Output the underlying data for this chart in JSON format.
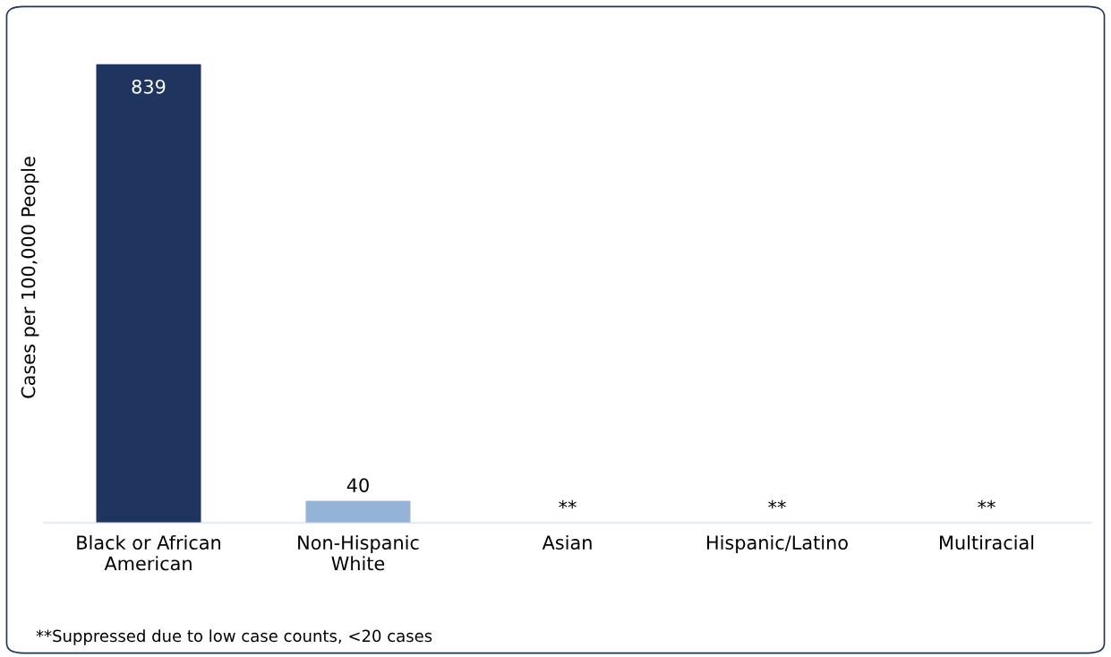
{
  "chart_data": {
    "type": "bar",
    "ylabel": "Cases per 100,000 People",
    "categories": [
      "Black or African\nAmerican",
      "Non-Hispanic\nWhite",
      "Asian",
      "Hispanic/Latino",
      "Multiracial"
    ],
    "values": [
      839,
      40,
      null,
      null,
      null
    ],
    "colors": [
      "#1f3560",
      "#95b3d7",
      "#95b3d7",
      "#95b3d7",
      "#95b3d7"
    ],
    "value_labels": [
      "839",
      "40",
      "**",
      "**",
      "**"
    ],
    "grid": false,
    "legend": false,
    "annotations": [
      "**Suppressed due to low case counts, <20 cases"
    ]
  }
}
